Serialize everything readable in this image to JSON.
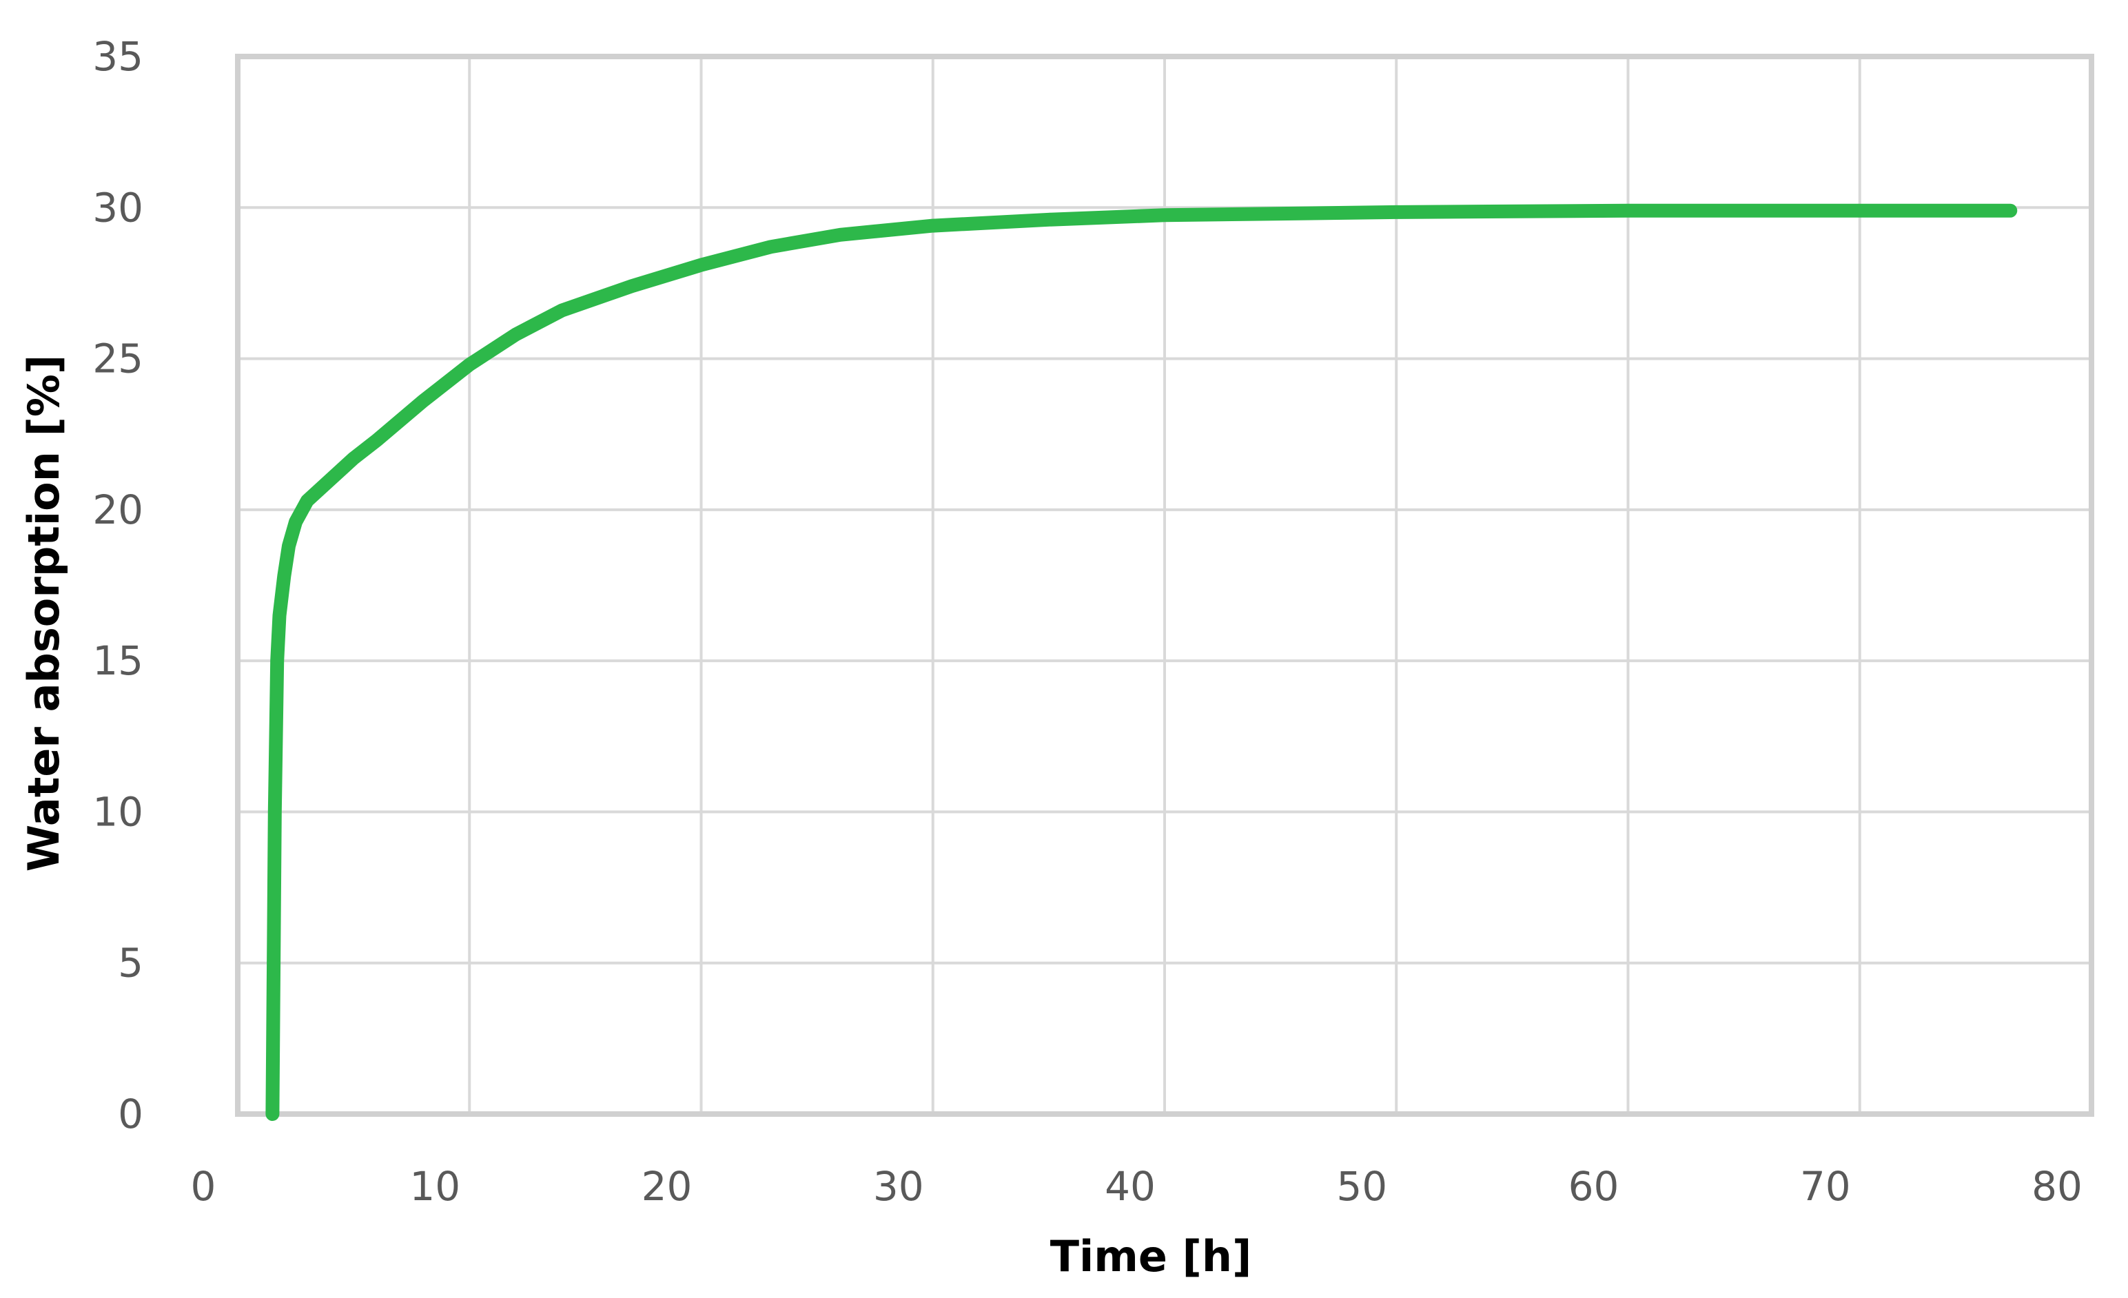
{
  "chart_data": {
    "type": "line",
    "title": "",
    "xlabel": "Time [h]",
    "ylabel": "Water absorption [%]",
    "xlim": [
      0,
      80
    ],
    "ylim": [
      0,
      35
    ],
    "xticks": [
      0,
      10,
      20,
      30,
      40,
      50,
      60,
      70,
      80
    ],
    "yticks": [
      0,
      5,
      10,
      15,
      20,
      25,
      30,
      35
    ],
    "grid": true,
    "legend": "none",
    "colors": {
      "line": "#2db84a",
      "grid": "#d9d9d9",
      "frame": "#d0d0d0"
    },
    "series": [
      {
        "x": [
          1.5,
          1.55,
          1.6,
          1.7,
          1.8,
          2.0,
          2.2,
          2.5,
          3.0,
          4.0,
          5.0,
          6.0,
          8.0,
          10.0,
          12.0,
          14.0,
          17.0,
          20.0,
          23.0,
          26.0,
          30.0,
          35.0,
          40.0,
          45.0,
          50.0,
          60.0,
          70.0,
          76.5
        ],
        "y": [
          0,
          5,
          10,
          15,
          16.5,
          17.8,
          18.8,
          19.6,
          20.3,
          21.0,
          21.7,
          22.3,
          23.6,
          24.8,
          25.8,
          26.6,
          27.4,
          28.1,
          28.7,
          29.1,
          29.4,
          29.6,
          29.75,
          29.8,
          29.85,
          29.9,
          29.9,
          29.9
        ]
      }
    ]
  }
}
